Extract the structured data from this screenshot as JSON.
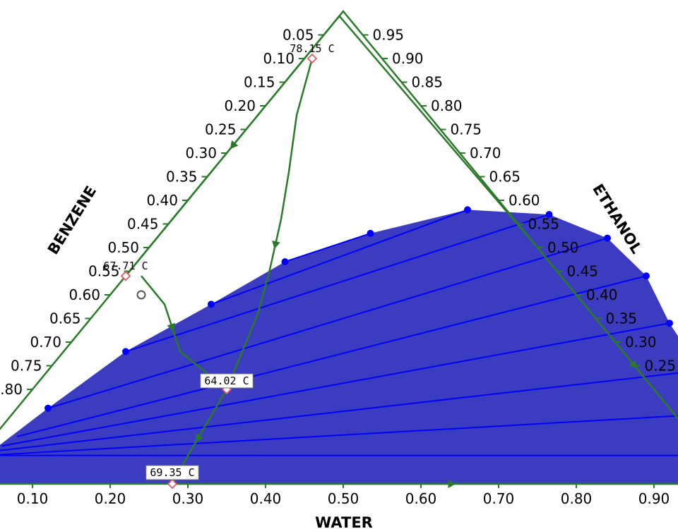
{
  "chart_data": {
    "type": "ternary",
    "axes": {
      "bottom": {
        "title": "WATER",
        "ticks": [
          "0.10",
          "0.20",
          "0.30",
          "0.40",
          "0.50",
          "0.60",
          "0.70",
          "0.80",
          "0.90"
        ]
      },
      "left": {
        "title": "BENZENE",
        "ticks": [
          "0.05",
          "0.10",
          "0.15",
          "0.20",
          "0.25",
          "0.30",
          "0.35",
          "0.40",
          "0.45",
          "0.50",
          "0.55",
          "0.60",
          "0.65",
          "0.70",
          "0.75",
          "0.80"
        ]
      },
      "right": {
        "title": "ETHANOL",
        "ticks": [
          "0.95",
          "0.90",
          "0.85",
          "0.80",
          "0.75",
          "0.70",
          "0.65",
          "0.60",
          "0.55",
          "0.50",
          "0.45",
          "0.40",
          "0.35",
          "0.30",
          "0.25"
        ]
      }
    },
    "two_liquid_region": {
      "color": "#3c3cc0",
      "envelope_points": [
        {
          "water": 0.01,
          "ethanol": 0.06
        },
        {
          "water": 0.04,
          "ethanol": 0.16
        },
        {
          "water": 0.08,
          "ethanol": 0.28
        },
        {
          "water": 0.14,
          "ethanol": 0.38
        },
        {
          "water": 0.19,
          "ethanol": 0.47
        },
        {
          "water": 0.27,
          "ethanol": 0.53
        },
        {
          "water": 0.37,
          "ethanol": 0.58
        },
        {
          "water": 0.48,
          "ethanol": 0.57
        },
        {
          "water": 0.58,
          "ethanol": 0.52
        },
        {
          "water": 0.67,
          "ethanol": 0.44
        },
        {
          "water": 0.75,
          "ethanol": 0.34
        },
        {
          "water": 0.84,
          "ethanol": 0.24
        },
        {
          "water": 0.92,
          "ethanol": 0.15
        },
        {
          "water": 0.99,
          "ethanol": 0.06
        }
      ]
    },
    "tie_lines": [
      {
        "benzene_side": {
          "water": 0.01,
          "ethanol": 0.06
        },
        "water_side": {
          "water": 1.01,
          "ethanol": 0.06
        }
      },
      {
        "benzene_side": {
          "water": 0.01,
          "ethanol": 0.06
        },
        "water_side": {
          "water": 0.92,
          "ethanol": 0.15
        }
      },
      {
        "benzene_side": {
          "water": 0.02,
          "ethanol": 0.07
        },
        "water_side": {
          "water": 0.84,
          "ethanol": 0.24
        }
      },
      {
        "benzene_side": {
          "water": 0.02,
          "ethanol": 0.08
        },
        "water_side": {
          "water": 0.75,
          "ethanol": 0.34
        }
      },
      {
        "benzene_side": {
          "water": 0.03,
          "ethanol": 0.1
        },
        "water_side": {
          "water": 0.67,
          "ethanol": 0.44
        }
      },
      {
        "benzene_side": {
          "water": 0.04,
          "ethanol": 0.16
        },
        "water_side": {
          "water": 0.58,
          "ethanol": 0.52
        }
      },
      {
        "benzene_side": {
          "water": 0.08,
          "ethanol": 0.28
        },
        "water_side": {
          "water": 0.48,
          "ethanol": 0.57
        }
      },
      {
        "benzene_side": {
          "water": 0.14,
          "ethanol": 0.38
        },
        "water_side": {
          "water": 0.37,
          "ethanol": 0.58
        }
      },
      {
        "benzene_side": {
          "water": 0.19,
          "ethanol": 0.47
        },
        "water_side": {
          "water": 0.27,
          "ethanol": 0.53
        }
      }
    ],
    "tie_line_color": "#0000ff",
    "point_color": "#0000ff",
    "curve_color": "#2a7a2a",
    "residue_curves": [
      {
        "points": [
          {
            "water": 0.01,
            "ethanol": 0.9
          },
          {
            "water": 0.05,
            "ethanol": 0.78
          },
          {
            "water": 0.1,
            "ethanol": 0.66
          },
          {
            "water": 0.14,
            "ethanol": 0.56
          },
          {
            "water": 0.18,
            "ethanol": 0.45
          },
          {
            "water": 0.21,
            "ethanol": 0.36
          },
          {
            "water": 0.23,
            "ethanol": 0.28
          },
          {
            "water": 0.25,
            "ethanol": 0.2
          }
        ]
      },
      {
        "points": [
          {
            "water": 0.25,
            "ethanol": 0.2
          },
          {
            "water": 0.26,
            "ethanol": 0.13
          },
          {
            "water": 0.27,
            "ethanol": 0.06
          },
          {
            "water": 0.28,
            "ethanol": 0.0
          }
        ]
      },
      {
        "points": [
          {
            "water": 0.02,
            "ethanol": 0.44
          },
          {
            "water": 0.08,
            "ethanol": 0.38
          },
          {
            "water": 0.15,
            "ethanol": 0.28
          },
          {
            "water": 0.25,
            "ethanol": 0.2
          }
        ]
      },
      {
        "points": [
          {
            "water": 0.0,
            "ethanol": 0.99
          },
          {
            "water": 0.0,
            "ethanol": 0.44
          }
        ]
      },
      {
        "points": [
          {
            "water": 0.0,
            "ethanol": 0.99
          },
          {
            "water": 0.5,
            "ethanol": 0.5
          },
          {
            "water": 1.0,
            "ethanol": 0.0
          }
        ]
      },
      {
        "points": [
          {
            "water": 0.28,
            "ethanol": 0.0
          },
          {
            "water": 1.0,
            "ethanol": 0.0
          }
        ]
      }
    ],
    "azeotropes": [
      {
        "label": "78.15 C",
        "water": 0.01,
        "ethanol": 0.9
      },
      {
        "label": "67.71 C",
        "water": 0.0,
        "ethanol": 0.44
      },
      {
        "label": "64.02 C",
        "water": 0.25,
        "ethanol": 0.2
      },
      {
        "label": "69.35 C",
        "water": 0.28,
        "ethanol": 0.0
      }
    ],
    "feed_point": {
      "water": 0.04,
      "ethanol": 0.4
    }
  }
}
